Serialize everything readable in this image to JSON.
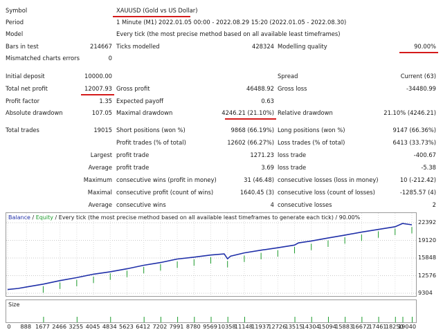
{
  "header": {
    "symbol_label": "Symbol",
    "symbol_value": "XAUUSD (Gold vs US Dollar)",
    "period_label": "Period",
    "period_value": "1 Minute (M1) 2022.01.05 00:00 - 2022.08.29 15:20 (2022.01.05 - 2022.08.30)",
    "model_label": "Model",
    "model_value": "Every tick (the most precise method based on all available least timeframes)",
    "bars_label": "Bars in test",
    "bars_value": "214667",
    "ticks_label": "Ticks modelled",
    "ticks_value": "428324",
    "quality_label": "Modelling quality",
    "quality_value": "90.00%",
    "mismatch_label": "Mismatched charts errors",
    "mismatch_value": "0"
  },
  "stats": {
    "initial_deposit_label": "Initial deposit",
    "initial_deposit_value": "10000.00",
    "spread_label": "Spread",
    "spread_value": "Current (63)",
    "net_profit_label": "Total net profit",
    "net_profit_value": "12007.93",
    "gross_profit_label": "Gross profit",
    "gross_profit_value": "46488.92",
    "gross_loss_label": "Gross loss",
    "gross_loss_value": "-34480.99",
    "profit_factor_label": "Profit factor",
    "profit_factor_value": "1.35",
    "expected_payoff_label": "Expected payoff",
    "expected_payoff_value": "0.63",
    "abs_dd_label": "Absolute drawdown",
    "abs_dd_value": "107.05",
    "max_dd_label": "Maximal drawdown",
    "max_dd_value": "4246.21 (21.10%)",
    "rel_dd_label": "Relative drawdown",
    "rel_dd_value": "21.10% (4246.21)",
    "total_trades_label": "Total trades",
    "total_trades_value": "19015",
    "short_label": "Short positions (won %)",
    "short_value": "9868 (66.19%)",
    "long_label": "Long positions (won %)",
    "long_value": "9147 (66.36%)",
    "profit_trades_label": "Profit trades (% of total)",
    "profit_trades_value": "12602 (66.27%)",
    "loss_trades_label": "Loss trades (% of total)",
    "loss_trades_value": "6413 (33.73%)",
    "largest_label": "Largest",
    "largest_profit_label": "profit trade",
    "largest_profit_value": "1271.23",
    "largest_loss_label": "loss trade",
    "largest_loss_value": "-400.67",
    "average_label": "Average",
    "avg_profit_label": "profit trade",
    "avg_profit_value": "3.69",
    "avg_loss_label": "loss trade",
    "avg_loss_value": "-5.38",
    "maximum_label": "Maximum",
    "max_cons_wins_label": "consecutive wins (profit in money)",
    "max_cons_wins_value": "31 (46.48)",
    "max_cons_losses_label": "consecutive losses (loss in money)",
    "max_cons_losses_value": "10 (-212.42)",
    "maximal_label": "Maximal",
    "maximal_cons_profit_label": "consecutive profit (count of wins)",
    "maximal_cons_profit_value": "1640.45 (3)",
    "maximal_cons_loss_label": "consecutive loss (count of losses)",
    "maximal_cons_loss_value": "-1285.57 (4)",
    "average2_label": "Average",
    "avg_cons_wins_label": "consecutive wins",
    "avg_cons_wins_value": "4",
    "avg_cons_losses_label": "consecutive losses",
    "avg_cons_losses_value": "2"
  },
  "chart_legend": {
    "balance": "Balance",
    "sep1": " / ",
    "equity": "Equity",
    "rest": " / Every tick (the most precise method based on all available least timeframes to generate each tick) / 90.00%"
  },
  "size_label": "Size",
  "chart_data": {
    "type": "line",
    "yticks": [
      22392,
      19120,
      15848,
      12576,
      9304
    ],
    "xticks": [
      "0",
      "888",
      "1677",
      "2466",
      "3255",
      "4045",
      "4834",
      "5623",
      "6412",
      "7202",
      "7991",
      "8780",
      "9569",
      "10358",
      "11148",
      "11937",
      "12726",
      "13515",
      "14304",
      "15094",
      "15883",
      "16672",
      "17461",
      "18250",
      "19040"
    ],
    "ylim": [
      9304,
      22392
    ],
    "xlim": [
      0,
      19040
    ],
    "series": [
      {
        "name": "Balance",
        "color": "#1f2fa8",
        "x": [
          0,
          500,
          1000,
          1677,
          2466,
          3255,
          4045,
          4834,
          5623,
          6412,
          7202,
          7991,
          8780,
          9569,
          10200,
          10358,
          10500,
          11148,
          11937,
          12726,
          13515,
          13700,
          14304,
          15094,
          15883,
          16672,
          17461,
          18250,
          18600,
          19040
        ],
        "y": [
          10000,
          10200,
          10550,
          11000,
          11650,
          12200,
          12850,
          13300,
          13850,
          14500,
          15000,
          15650,
          16000,
          16400,
          16600,
          15700,
          16200,
          16800,
          17300,
          17750,
          18250,
          18650,
          19000,
          19550,
          20100,
          20650,
          21150,
          21650,
          22250,
          22007
        ]
      },
      {
        "name": "Equity",
        "color": "#1a9a2a",
        "x": [
          1677,
          2466,
          3255,
          4045,
          4834,
          5623,
          6412,
          7202,
          7991,
          8780,
          9569,
          10358,
          11148,
          11937,
          12726,
          13515,
          14304,
          15094,
          15883,
          16672,
          17461,
          18250,
          19040
        ],
        "y": [
          10300,
          11000,
          11500,
          12100,
          12700,
          13200,
          13900,
          14400,
          14900,
          15300,
          15700,
          15000,
          16000,
          16500,
          17000,
          17600,
          18200,
          18800,
          19400,
          19900,
          20500,
          21000,
          21300
        ]
      }
    ],
    "size_bars_x": [
      1677,
      3255,
      4834,
      6412,
      7202,
      7991,
      8780,
      9569,
      10358,
      11148,
      13515,
      14304,
      15094,
      15883,
      16672,
      17461,
      18250,
      18600,
      19040
    ]
  }
}
